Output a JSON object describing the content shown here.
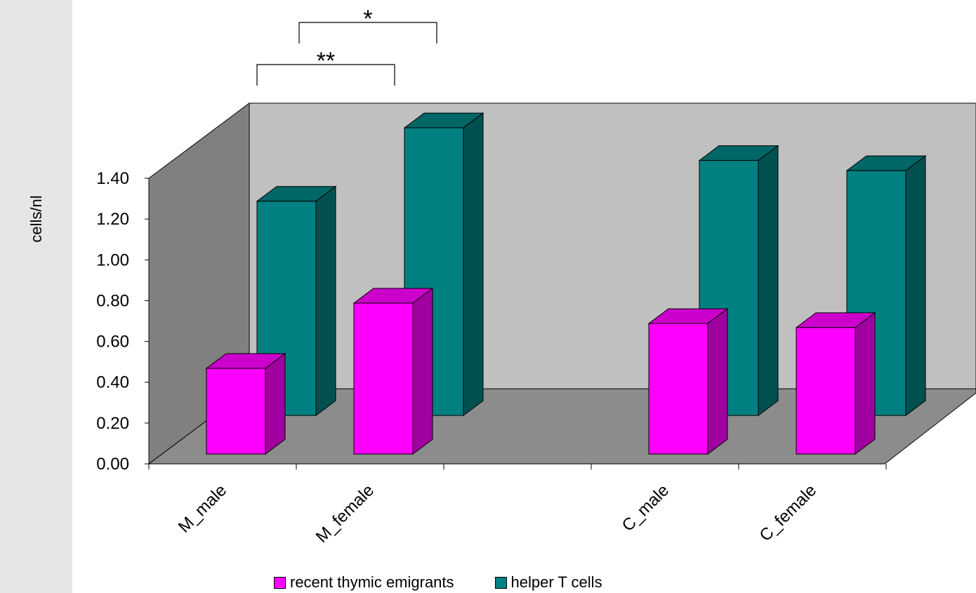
{
  "chart_data": {
    "type": "bar",
    "ylabel": "cells/nl",
    "ylim": [
      0,
      1.4
    ],
    "yticks": [
      "0.00",
      "0.20",
      "0.40",
      "0.60",
      "0.80",
      "1.00",
      "1.20",
      "1.40"
    ],
    "categories": [
      "M_male",
      "M_female",
      "",
      "C_male",
      "C_female"
    ],
    "series": [
      {
        "name": "recent thymic emigrants",
        "color": "#ff00ff",
        "values": [
          0.42,
          0.74,
          null,
          0.64,
          0.62
        ]
      },
      {
        "name": "helper T cells",
        "color": "#008080",
        "values": [
          1.05,
          1.41,
          null,
          1.25,
          1.2
        ]
      }
    ],
    "annotations": [
      {
        "text": "**",
        "from": "M_male",
        "to": "M_female"
      },
      {
        "text": "*",
        "from": "M_male",
        "to": "M_female"
      }
    ],
    "legend_position": "bottom",
    "grid": false
  }
}
